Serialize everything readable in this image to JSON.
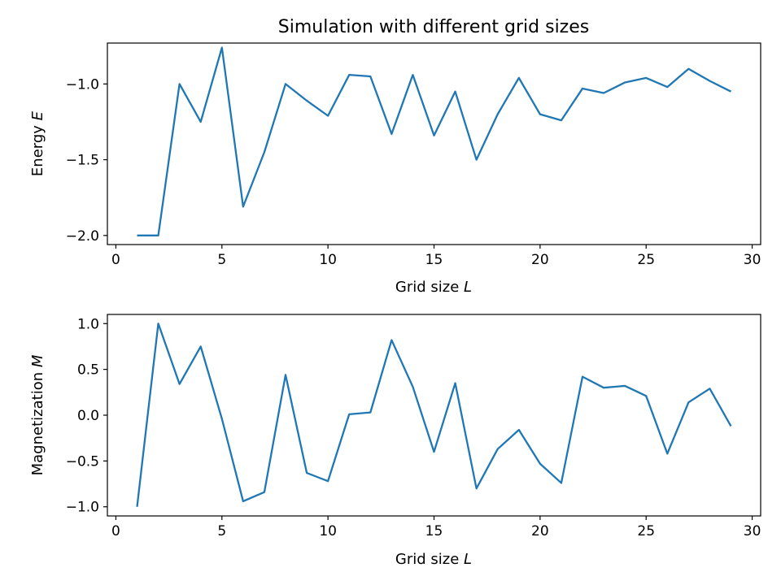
{
  "chart_data": [
    {
      "type": "line",
      "title": "Simulation with different grid sizes",
      "xlabel": "Grid size",
      "xlabel_var": "L",
      "ylabel": "Energy",
      "ylabel_var": "E",
      "xlim": [
        -0.4,
        30.4
      ],
      "ylim": [
        -2.06,
        -0.73
      ],
      "xticks": [
        0,
        5,
        10,
        15,
        20,
        25,
        30
      ],
      "yticks": [
        -2.0,
        -1.5,
        -1.0
      ],
      "ytick_labels": [
        "−2.0",
        "−1.5",
        "−1.0"
      ],
      "grid": false,
      "color": "#1f77b4",
      "x": [
        1,
        2,
        3,
        4,
        5,
        6,
        7,
        8,
        9,
        10,
        11,
        12,
        13,
        14,
        15,
        16,
        17,
        18,
        19,
        20,
        21,
        22,
        23,
        24,
        25,
        26,
        27,
        28,
        29
      ],
      "y": [
        -2.0,
        -2.0,
        -1.0,
        -1.25,
        -0.76,
        -1.81,
        -1.45,
        -1.0,
        -1.11,
        -1.21,
        -0.94,
        -0.95,
        -1.33,
        -0.94,
        -1.34,
        -1.05,
        -1.5,
        -1.2,
        -0.96,
        -1.2,
        -1.24,
        -1.03,
        -1.06,
        -0.99,
        -0.96,
        -1.02,
        -0.9,
        -0.98,
        -1.05
      ]
    },
    {
      "type": "line",
      "title": "",
      "xlabel": "Grid size",
      "xlabel_var": "L",
      "ylabel": "Magnetization",
      "ylabel_var": "M",
      "xlim": [
        -0.4,
        30.4
      ],
      "ylim": [
        -1.1,
        1.1
      ],
      "xticks": [
        0,
        5,
        10,
        15,
        20,
        25,
        30
      ],
      "yticks": [
        -1.0,
        -0.5,
        0.0,
        0.5,
        1.0
      ],
      "ytick_labels": [
        "−1.0",
        "−0.5",
        "0.0",
        "0.5",
        "1.0"
      ],
      "grid": false,
      "color": "#1f77b4",
      "x": [
        1,
        2,
        3,
        4,
        5,
        6,
        7,
        8,
        9,
        10,
        11,
        12,
        13,
        14,
        15,
        16,
        17,
        18,
        19,
        20,
        21,
        22,
        23,
        24,
        25,
        26,
        27,
        28,
        29
      ],
      "y": [
        -1.0,
        1.0,
        0.34,
        0.75,
        -0.04,
        -0.94,
        -0.84,
        0.44,
        -0.63,
        -0.72,
        0.01,
        0.03,
        0.82,
        0.31,
        -0.4,
        0.35,
        -0.8,
        -0.37,
        -0.16,
        -0.53,
        -0.74,
        0.42,
        0.3,
        0.32,
        0.21,
        -0.42,
        0.14,
        0.29,
        -0.12
      ]
    }
  ]
}
